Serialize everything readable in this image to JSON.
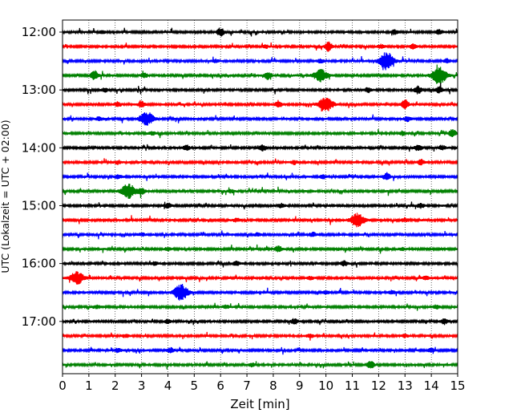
{
  "chart_data": {
    "type": "line",
    "subtype": "helicorder",
    "xlabel": "Zeit  [min]",
    "ylabel": "UTC (Lokalzeit = UTC + 02:00)",
    "xlim": [
      0,
      15
    ],
    "x_ticks": [
      0,
      1,
      2,
      3,
      4,
      5,
      6,
      7,
      8,
      9,
      10,
      11,
      12,
      13,
      14,
      15
    ],
    "x_tick_labels": [
      "0",
      "1",
      "2",
      "3",
      "4",
      "5",
      "6",
      "7",
      "8",
      "9",
      "10",
      "11",
      "12",
      "13",
      "14",
      "15"
    ],
    "y_tick_labels": [
      "12:00",
      "13:00",
      "14:00",
      "15:00",
      "16:00",
      "17:00"
    ],
    "y_tick_rows": [
      0,
      4,
      8,
      12,
      16,
      20
    ],
    "grid": "vertical dotted",
    "trace_interval_minutes": 15,
    "row_colors": [
      "#000000",
      "#ff0000",
      "#0000ff",
      "#008000"
    ],
    "rows": [
      {
        "start": "12:00",
        "events": [
          {
            "t": 6.0,
            "amp": 0.55
          },
          {
            "t": 12.6,
            "amp": 0.3
          },
          {
            "t": 14.3,
            "amp": 0.3
          },
          {
            "t": 1.5,
            "amp": 0.15
          }
        ]
      },
      {
        "start": "12:15",
        "events": [
          {
            "t": 10.1,
            "amp": 0.6
          },
          {
            "t": 13.3,
            "amp": 0.3
          },
          {
            "t": 12.1,
            "amp": 0.25
          },
          {
            "t": 7.7,
            "amp": 0.2
          }
        ]
      },
      {
        "start": "12:30",
        "events": [
          {
            "t": 12.3,
            "amp": 1.2
          },
          {
            "t": 14.6,
            "amp": 0.25
          },
          {
            "t": 9.8,
            "amp": 0.25
          },
          {
            "t": 5.8,
            "amp": 0.2
          }
        ]
      },
      {
        "start": "12:45",
        "events": [
          {
            "t": 1.2,
            "amp": 0.7
          },
          {
            "t": 9.8,
            "amp": 0.8
          },
          {
            "t": 14.3,
            "amp": 1.2
          },
          {
            "t": 7.8,
            "amp": 0.5
          },
          {
            "t": 3.1,
            "amp": 0.3
          }
        ]
      },
      {
        "start": "13:00",
        "events": [
          {
            "t": 13.5,
            "amp": 0.5
          },
          {
            "t": 14.3,
            "amp": 0.4
          },
          {
            "t": 11.6,
            "amp": 0.3
          },
          {
            "t": 1.6,
            "amp": 0.25
          }
        ]
      },
      {
        "start": "13:15",
        "events": [
          {
            "t": 10.0,
            "amp": 1.0
          },
          {
            "t": 13.0,
            "amp": 0.7
          },
          {
            "t": 8.2,
            "amp": 0.5
          },
          {
            "t": 3.0,
            "amp": 0.4
          },
          {
            "t": 2.1,
            "amp": 0.3
          }
        ]
      },
      {
        "start": "13:30",
        "events": [
          {
            "t": 3.2,
            "amp": 0.9
          },
          {
            "t": 13.1,
            "amp": 0.3
          },
          {
            "t": 1.4,
            "amp": 0.25
          }
        ]
      },
      {
        "start": "13:45",
        "events": [
          {
            "t": 14.8,
            "amp": 0.5
          },
          {
            "t": 12.9,
            "amp": 0.25
          },
          {
            "t": 3.4,
            "amp": 0.2
          }
        ]
      },
      {
        "start": "14:00",
        "events": [
          {
            "t": 7.6,
            "amp": 0.4
          },
          {
            "t": 13.5,
            "amp": 0.4
          },
          {
            "t": 4.7,
            "amp": 0.35
          },
          {
            "t": 14.4,
            "amp": 0.3
          }
        ]
      },
      {
        "start": "14:15",
        "events": [
          {
            "t": 13.6,
            "amp": 0.35
          },
          {
            "t": 2.1,
            "amp": 0.25
          },
          {
            "t": 8.8,
            "amp": 0.25
          }
        ]
      },
      {
        "start": "14:30",
        "events": [
          {
            "t": 12.3,
            "amp": 0.5
          },
          {
            "t": 2.1,
            "amp": 0.25
          },
          {
            "t": 9.9,
            "amp": 0.25
          }
        ]
      },
      {
        "start": "14:45",
        "events": [
          {
            "t": 2.5,
            "amp": 1.0
          },
          {
            "t": 3.0,
            "amp": 0.4
          },
          {
            "t": 6.4,
            "amp": 0.2
          }
        ]
      },
      {
        "start": "15:00",
        "events": [
          {
            "t": 4.0,
            "amp": 0.3
          },
          {
            "t": 13.6,
            "amp": 0.3
          },
          {
            "t": 8.3,
            "amp": 0.25
          }
        ]
      },
      {
        "start": "15:15",
        "events": [
          {
            "t": 11.2,
            "amp": 0.9
          },
          {
            "t": 13.0,
            "amp": 0.25
          },
          {
            "t": 6.6,
            "amp": 0.2
          }
        ]
      },
      {
        "start": "15:30",
        "events": [
          {
            "t": 9.5,
            "amp": 0.3
          },
          {
            "t": 3.0,
            "amp": 0.2
          },
          {
            "t": 7.4,
            "amp": 0.2
          }
        ]
      },
      {
        "start": "15:45",
        "events": [
          {
            "t": 8.2,
            "amp": 0.4
          },
          {
            "t": 4.0,
            "amp": 0.2
          },
          {
            "t": 12.9,
            "amp": 0.2
          }
        ]
      },
      {
        "start": "16:00",
        "events": [
          {
            "t": 10.7,
            "amp": 0.3
          },
          {
            "t": 6.6,
            "amp": 0.25
          },
          {
            "t": 3.5,
            "amp": 0.2
          }
        ]
      },
      {
        "start": "16:15",
        "events": [
          {
            "t": 0.55,
            "amp": 0.8
          },
          {
            "t": 13.8,
            "amp": 0.25
          },
          {
            "t": 9.4,
            "amp": 0.2
          }
        ]
      },
      {
        "start": "16:30",
        "events": [
          {
            "t": 4.5,
            "amp": 1.1
          },
          {
            "t": 10.0,
            "amp": 0.2
          },
          {
            "t": 12.5,
            "amp": 0.2
          }
        ]
      },
      {
        "start": "16:45",
        "events": [
          {
            "t": 6.2,
            "amp": 0.25
          },
          {
            "t": 14.2,
            "amp": 0.25
          },
          {
            "t": 1.3,
            "amp": 0.2
          }
        ]
      },
      {
        "start": "17:00",
        "events": [
          {
            "t": 8.8,
            "amp": 0.35
          },
          {
            "t": 14.5,
            "amp": 0.35
          },
          {
            "t": 4.0,
            "amp": 0.25
          }
        ]
      },
      {
        "start": "17:15",
        "events": [
          {
            "t": 9.4,
            "amp": 0.25
          },
          {
            "t": 2.4,
            "amp": 0.2
          },
          {
            "t": 13.0,
            "amp": 0.2
          }
        ]
      },
      {
        "start": "17:30",
        "events": [
          {
            "t": 4.1,
            "amp": 0.3
          },
          {
            "t": 2.1,
            "amp": 0.25
          },
          {
            "t": 14.0,
            "amp": 0.25
          }
        ]
      },
      {
        "start": "17:45",
        "events": [
          {
            "t": 11.7,
            "amp": 0.55
          },
          {
            "t": 7.2,
            "amp": 0.2
          }
        ]
      }
    ]
  }
}
